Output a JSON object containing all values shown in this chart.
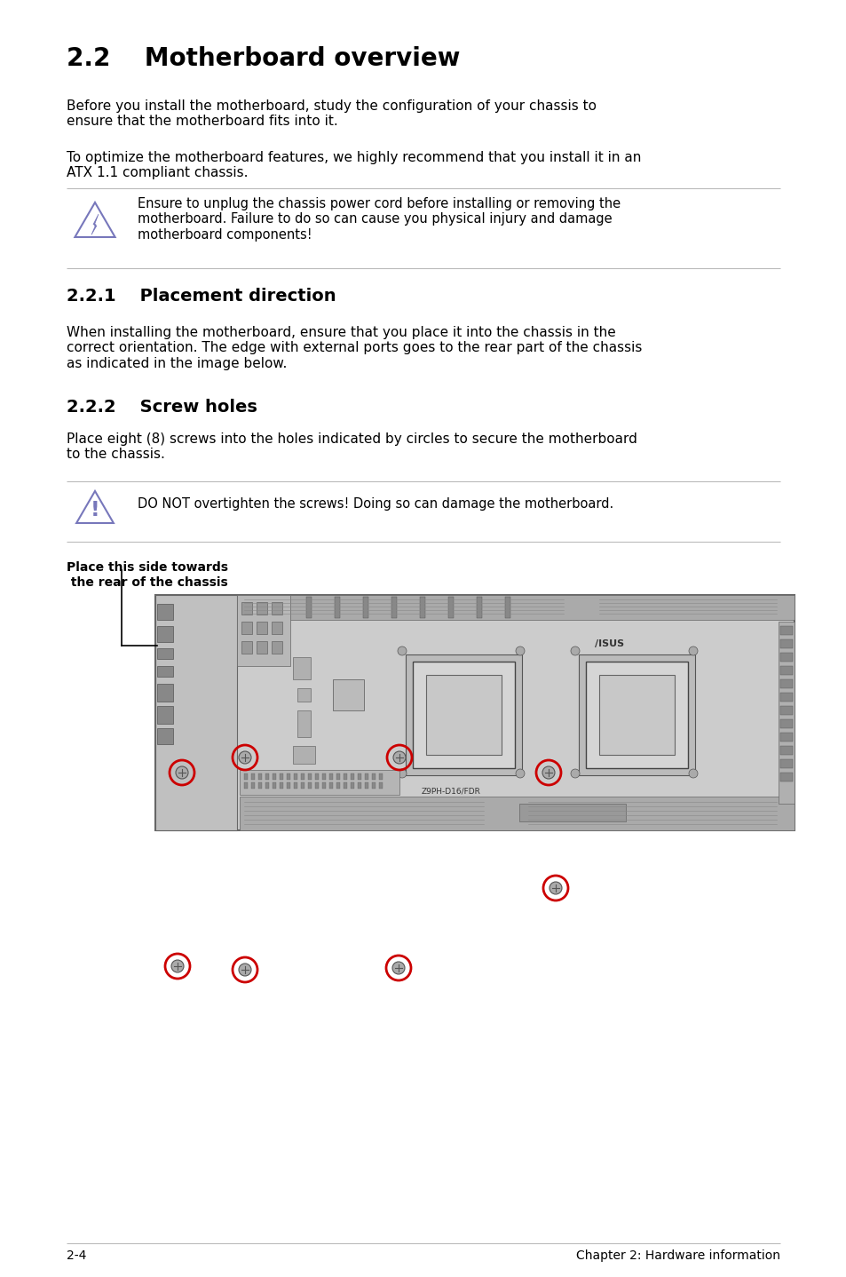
{
  "title": "2.2    Motherboard overview",
  "section_221": "2.2.1    Placement direction",
  "section_222": "2.2.2    Screw holes",
  "para1": "Before you install the motherboard, study the configuration of your chassis to\nensure that the motherboard fits into it.",
  "para2": "To optimize the motherboard features, we highly recommend that you install it in an\nATX 1.1 compliant chassis.",
  "warning1": "Ensure to unplug the chassis power cord before installing or removing the\nmotherboard. Failure to do so can cause you physical injury and damage\nmotherboard components!",
  "para3": "When installing the motherboard, ensure that you place it into the chassis in the\ncorrect orientation. The edge with external ports goes to the rear part of the chassis\nas indicated in the image below.",
  "para4": "Place eight (8) screws into the holes indicated by circles to secure the motherboard\nto the chassis.",
  "warning2": "DO NOT overtighten the screws! Doing so can damage the motherboard.",
  "side_label_line1": "Place this side towards",
  "side_label_line2": " the rear of the chassis",
  "footer_left": "2-4",
  "footer_right": "Chapter 2: Hardware information",
  "bg_color": "#ffffff",
  "text_color": "#000000",
  "icon_color": "#7777bb",
  "line_color": "#bbbbbb",
  "screw_color": "#cc0000",
  "board_fill": "#cccccc",
  "board_edge": "#666666",
  "dark_fill": "#aaaaaa",
  "darker_fill": "#999999",
  "light_fill": "#dddddd"
}
